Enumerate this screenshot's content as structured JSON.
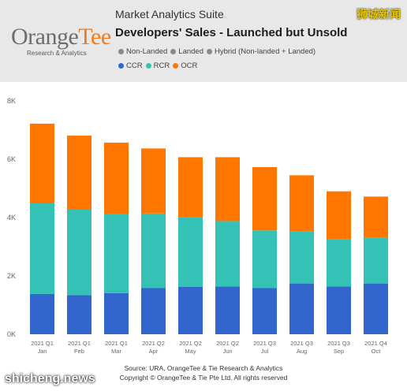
{
  "header": {
    "logo_main": "Orange",
    "logo_accent": "Tee",
    "logo_sub": "Research & Analytics",
    "suite": "Market Analytics Suite",
    "title": "Developers' Sales - Launched but Unsold",
    "watermark": "狮城新闻"
  },
  "legend": {
    "row1": [
      {
        "label": "Non-Landed",
        "color": "#8a8a8a"
      },
      {
        "label": "Landed",
        "color": "#8a8a8a"
      },
      {
        "label": "Hybrid (Non-landed + Landed)",
        "color": "#8a8a8a"
      }
    ],
    "row2": [
      {
        "label": "CCR",
        "color": "#3366cc"
      },
      {
        "label": "RCR",
        "color": "#33c2b5"
      },
      {
        "label": "OCR",
        "color": "#ff7700"
      }
    ]
  },
  "chart_data": {
    "type": "bar",
    "stacked": true,
    "categories": [
      [
        "2021 Q1",
        "Jan"
      ],
      [
        "2021 Q1",
        "Feb"
      ],
      [
        "2021 Q1",
        "Mar"
      ],
      [
        "2021 Q2",
        "Apr"
      ],
      [
        "2021 Q2",
        "May"
      ],
      [
        "2021 Q2",
        "Jun"
      ],
      [
        "2021 Q3",
        "Jul"
      ],
      [
        "2021 Q3",
        "Aug"
      ],
      [
        "2021 Q3",
        "Sep"
      ],
      [
        "2021 Q4",
        "Oct"
      ]
    ],
    "series": [
      {
        "name": "CCR",
        "color": "#3366cc",
        "values": [
          1380,
          1340,
          1410,
          1590,
          1630,
          1640,
          1590,
          1740,
          1640,
          1740
        ]
      },
      {
        "name": "RCR",
        "color": "#33c2b5",
        "values": [
          3120,
          2930,
          2700,
          2550,
          2380,
          2240,
          1970,
          1790,
          1620,
          1580
        ]
      },
      {
        "name": "OCR",
        "color": "#ff7700",
        "values": [
          2720,
          2540,
          2460,
          2230,
          2060,
          2190,
          2170,
          1920,
          1640,
          1400
        ]
      }
    ],
    "y_ticks": [
      "0K",
      "2K",
      "4K",
      "6K",
      "8K"
    ],
    "ylim": [
      0,
      8000
    ]
  },
  "source": {
    "line1": "Source: URA, OrangeTee & Tie Research & Analytics",
    "line2": "Copyright © OrangeTee & Tie Pte Ltd. All rights reserved"
  },
  "watermark_bottom": "shicheng.news"
}
